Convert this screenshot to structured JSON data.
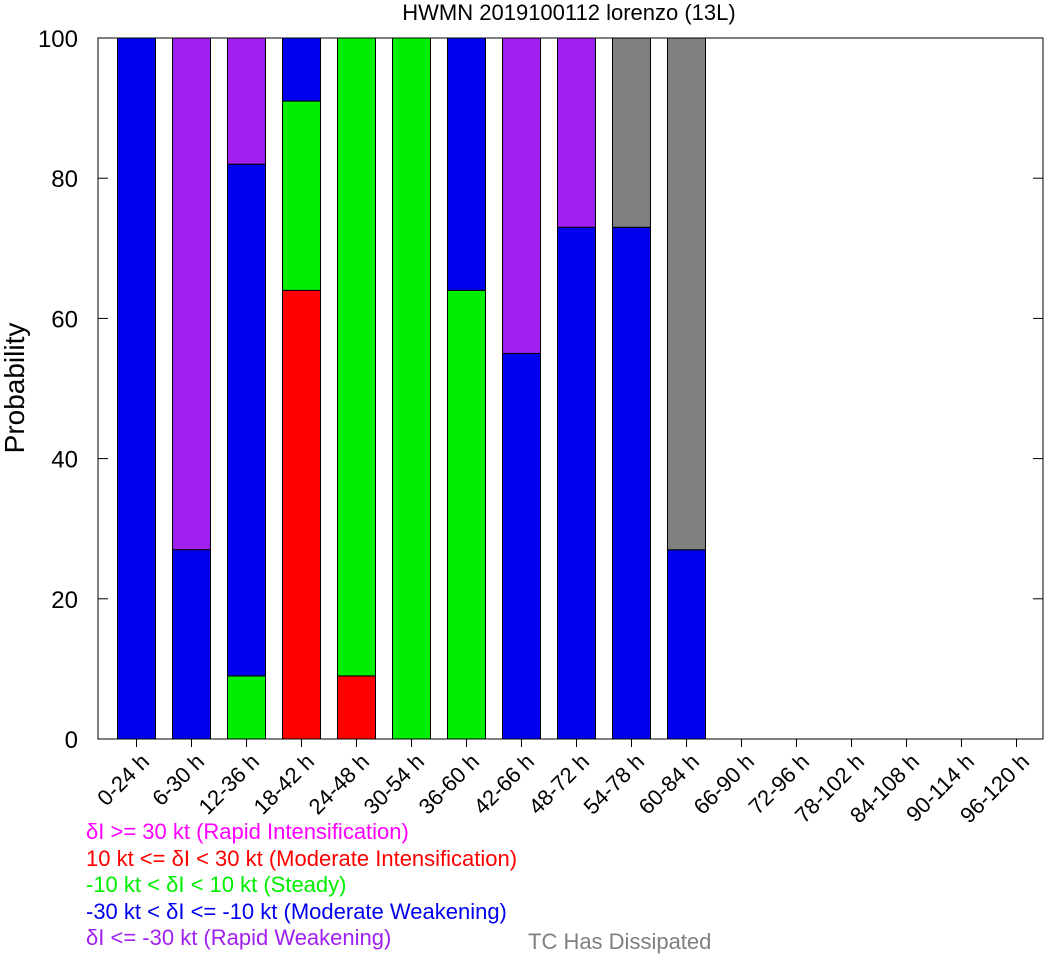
{
  "chart_data": {
    "type": "bar",
    "stacked": true,
    "title": "HWMN 2019100112 lorenzo (13L)",
    "ylabel": "Probability",
    "xlabel": "",
    "ylim": [
      0,
      100
    ],
    "yticks": [
      0,
      20,
      40,
      60,
      80,
      100
    ],
    "grid": false,
    "categories": [
      "0-24 h",
      "6-30 h",
      "12-36 h",
      "18-42 h",
      "24-48 h",
      "30-54 h",
      "36-60 h",
      "42-66 h",
      "48-72 h",
      "54-78 h",
      "60-84 h",
      "66-90 h",
      "72-96 h",
      "78-102 h",
      "84-108 h",
      "90-114 h",
      "96-120 h"
    ],
    "series": [
      {
        "key": "ri",
        "color": "#ff00ff",
        "values": [
          0,
          0,
          0,
          0,
          0,
          0,
          0,
          0,
          0,
          0,
          0,
          0,
          0,
          0,
          0,
          0,
          0
        ]
      },
      {
        "key": "mi",
        "color": "#ff0000",
        "values": [
          0,
          0,
          0,
          64,
          9,
          0,
          0,
          0,
          0,
          0,
          0,
          0,
          0,
          0,
          0,
          0,
          0
        ]
      },
      {
        "key": "st",
        "color": "#00ee00",
        "values": [
          0,
          0,
          9,
          27,
          91,
          100,
          64,
          0,
          0,
          0,
          0,
          0,
          0,
          0,
          0,
          0,
          0
        ]
      },
      {
        "key": "mw",
        "color": "#0000ee",
        "values": [
          100,
          27,
          73,
          9,
          0,
          0,
          36,
          55,
          73,
          73,
          27,
          0,
          0,
          0,
          0,
          0,
          0
        ]
      },
      {
        "key": "rw",
        "color": "#a020f0",
        "values": [
          0,
          73,
          18,
          0,
          0,
          0,
          0,
          45,
          27,
          0,
          0,
          0,
          0,
          0,
          0,
          0,
          0
        ]
      },
      {
        "key": "dis",
        "color": "#808080",
        "values": [
          0,
          0,
          0,
          0,
          0,
          0,
          0,
          0,
          0,
          27,
          73,
          0,
          0,
          0,
          0,
          0,
          0
        ]
      }
    ]
  },
  "legend": {
    "lines": [
      {
        "text": "δI >= 30 kt (Rapid Intensification)",
        "color": "#ff00ff"
      },
      {
        "text": "10 kt <= δI < 30 kt (Moderate Intensification)",
        "color": "#ff0000"
      },
      {
        "text": "-10 kt < δI < 10 kt (Steady)",
        "color": "#00ee00"
      },
      {
        "text": "-30 kt < δI <= -10 kt (Moderate Weakening)",
        "color": "#0000ee"
      },
      {
        "text": "δI <= -30 kt (Rapid Weakening)",
        "color": "#a020f0"
      }
    ],
    "dissipated": {
      "text": "TC Has Dissipated",
      "color": "#808080"
    }
  }
}
